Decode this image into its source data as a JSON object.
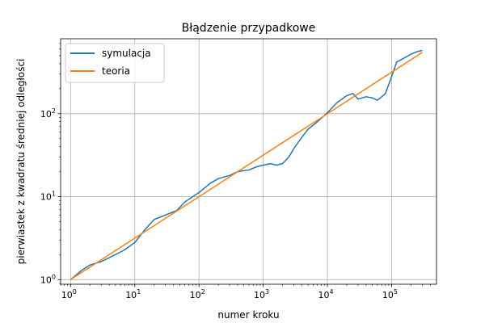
{
  "chart_data": {
    "type": "line",
    "title": "Błądzenie przypadkowe",
    "xlabel": "numer kroku",
    "ylabel": "pierwiastek z kwadratu średniej odległości",
    "x_scale": "log",
    "y_scale": "log",
    "xlim": [
      0.7,
      500000
    ],
    "ylim": [
      0.88,
      800
    ],
    "x_ticks": [
      {
        "base": "10",
        "exp": "0",
        "value": 1
      },
      {
        "base": "10",
        "exp": "1",
        "value": 10
      },
      {
        "base": "10",
        "exp": "2",
        "value": 100
      },
      {
        "base": "10",
        "exp": "3",
        "value": 1000
      },
      {
        "base": "10",
        "exp": "4",
        "value": 10000
      },
      {
        "base": "10",
        "exp": "5",
        "value": 100000
      }
    ],
    "y_ticks": [
      {
        "base": "10",
        "exp": "0",
        "value": 1
      },
      {
        "base": "10",
        "exp": "1",
        "value": 10
      },
      {
        "base": "10",
        "exp": "2",
        "value": 100
      }
    ],
    "grid": true,
    "legend_position": "top-left",
    "series": [
      {
        "name": "symulacja",
        "color": "#1f77b4",
        "x": [
          1,
          1.5,
          2,
          3,
          5,
          7,
          10,
          14,
          20,
          30,
          45,
          60,
          80,
          100,
          150,
          200,
          300,
          400,
          600,
          800,
          1000,
          1300,
          1600,
          2000,
          2500,
          3000,
          4000,
          5000,
          7000,
          10000,
          14000,
          20000,
          25000,
          30000,
          40000,
          50000,
          60000,
          70000,
          80000,
          100000,
          120000,
          150000,
          200000,
          250000,
          300000
        ],
        "y": [
          1.0,
          1.3,
          1.5,
          1.65,
          2.0,
          2.3,
          2.8,
          3.9,
          5.3,
          6.0,
          6.8,
          8.6,
          10.0,
          11.2,
          14.5,
          16.5,
          18.0,
          20.0,
          21.0,
          23.0,
          24.0,
          25.0,
          24.0,
          25.0,
          30.0,
          38.0,
          52.0,
          65.0,
          80.0,
          103.0,
          135.0,
          165.0,
          175.0,
          150.0,
          160.0,
          155.0,
          145.0,
          160.0,
          175.0,
          280.0,
          420.0,
          460.0,
          520.0,
          560.0,
          580.0
        ]
      },
      {
        "name": "teoria",
        "color": "#ff7f0e",
        "x": [
          1,
          300000
        ],
        "y": [
          1.0,
          547.7
        ]
      }
    ]
  }
}
